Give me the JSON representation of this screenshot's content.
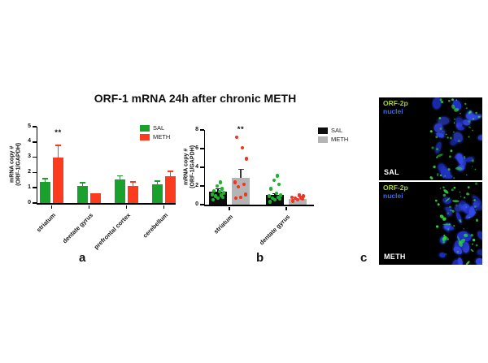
{
  "title": "ORF-1 mRNA 24h after chronic METH",
  "panel_letters": {
    "a": "a",
    "b": "b",
    "c": "c"
  },
  "colors": {
    "sal_green": "#1aa02c",
    "meth_red": "#fa3b1e",
    "sal_black": "#0d0d0d",
    "meth_gray": "#b4b4b4",
    "dot_green": "#1db32d",
    "dot_red": "#f03520",
    "micro_marker_green": "#a8ce38",
    "micro_nuclei_blue": "#4169e1"
  },
  "chart_data": [
    {
      "id": "a",
      "type": "bar",
      "ylabel_line1": "mRNA copy #",
      "ylabel_line2": "(ORF-1/GAPDH)",
      "xlabel": "",
      "categories": [
        "striatum",
        "dentate gyrus",
        "prefrontal cortex",
        "cerebellum"
      ],
      "ylim": [
        0,
        5
      ],
      "yticks": [
        0,
        1,
        2,
        3,
        4,
        5
      ],
      "legend_position": "top-right",
      "series": [
        {
          "name": "SAL",
          "color": "#1aa02c",
          "error_color": "#1aa02c",
          "values": [
            1.4,
            1.1,
            1.55,
            1.25
          ],
          "errors": [
            0.2,
            0.25,
            0.25,
            0.2
          ]
        },
        {
          "name": "METH",
          "color": "#fa3b1e",
          "error_color": "#fa3b1e",
          "values": [
            3.0,
            0.65,
            1.1,
            1.75
          ],
          "errors": [
            0.8,
            0.05,
            0.3,
            0.35
          ]
        }
      ],
      "significance": [
        {
          "category": "striatum",
          "series": "METH",
          "label": "**",
          "y": 4.3
        }
      ]
    },
    {
      "id": "b",
      "type": "bar+scatter",
      "ylabel_line1": "mRNA copy #",
      "ylabel_line2": "(ORF-1/GAPDH)",
      "xlabel": "",
      "categories": [
        "striatum",
        "dentate gyrus"
      ],
      "ylim": [
        0,
        8
      ],
      "yticks": [
        0,
        2,
        4,
        6,
        8
      ],
      "legend_position": "top-right",
      "series": [
        {
          "name": "SAL",
          "color": "#0d0d0d",
          "error_color": "#0d0d0d",
          "point_color": "#1db32d",
          "values": [
            1.4,
            1.05
          ],
          "errors": [
            0.3,
            0.15
          ],
          "points": [
            [
              0.5,
              0.7,
              0.8,
              0.9,
              1.0,
              1.1,
              1.25,
              1.4,
              1.5,
              1.7,
              2.0,
              2.4
            ],
            [
              0.3,
              0.5,
              0.6,
              0.7,
              0.8,
              0.9,
              1.0,
              1.2,
              1.7,
              2.2,
              2.6,
              3.1
            ]
          ]
        },
        {
          "name": "METH",
          "color": "#b4b4b4",
          "error_color": "#3a3a3a",
          "point_color": "#f03520",
          "values": [
            2.9,
            0.6
          ],
          "errors": [
            0.9,
            0.1
          ],
          "points": [
            [
              0.7,
              0.8,
              1.1,
              1.9,
              2.2,
              2.4,
              4.9,
              6.1,
              7.2
            ],
            [
              0.4,
              0.5,
              0.6,
              0.7,
              0.75,
              0.8,
              0.9,
              1.0
            ]
          ]
        }
      ],
      "significance": [
        {
          "category": "striatum",
          "series": "METH",
          "label": "**",
          "y": 7.6
        }
      ]
    }
  ],
  "microscopy": {
    "marker_label": "ORF-2p",
    "nuclei_label": "nuclei",
    "images": [
      {
        "caption": "SAL"
      },
      {
        "caption": "METH"
      }
    ]
  }
}
